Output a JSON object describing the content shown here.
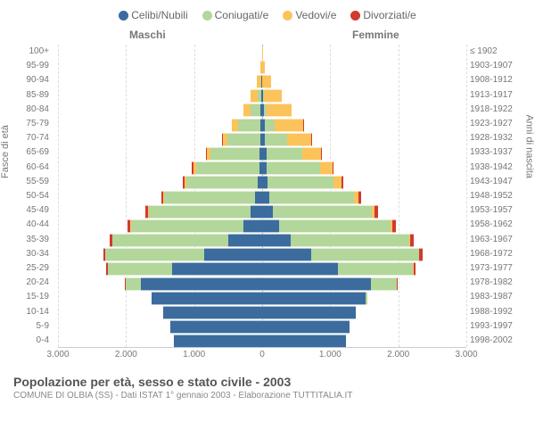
{
  "legend": [
    {
      "label": "Celibi/Nubili",
      "color": "#3b6c9d"
    },
    {
      "label": "Coniugati/e",
      "color": "#b3d69b"
    },
    {
      "label": "Vedovi/e",
      "color": "#fcc35a"
    },
    {
      "label": "Divorziati/e",
      "color": "#d23a2e"
    }
  ],
  "headers": {
    "left": "Maschi",
    "right": "Femmine"
  },
  "ylabel_left": "Fasce di età",
  "ylabel_right": "Anni di nascita",
  "xmax": 3000,
  "xticks_left": [
    "3.000",
    "2.000",
    "1.000",
    "0"
  ],
  "xticks_right": [
    "0",
    "1.000",
    "2.000",
    "3.000"
  ],
  "age_groups": [
    "100+",
    "95-99",
    "90-94",
    "85-89",
    "80-84",
    "75-79",
    "70-74",
    "65-69",
    "60-64",
    "55-59",
    "50-54",
    "45-49",
    "40-44",
    "35-39",
    "30-34",
    "25-29",
    "20-24",
    "15-19",
    "10-14",
    "5-9",
    "0-4"
  ],
  "birth_years": [
    "≤ 1902",
    "1903-1907",
    "1908-1912",
    "1913-1917",
    "1918-1922",
    "1923-1927",
    "1928-1932",
    "1933-1937",
    "1938-1942",
    "1943-1947",
    "1948-1952",
    "1953-1957",
    "1958-1962",
    "1963-1967",
    "1968-1972",
    "1973-1977",
    "1978-1982",
    "1983-1987",
    "1988-1992",
    "1993-1997",
    "1998-2002"
  ],
  "rows": [
    {
      "m": [
        0,
        0,
        5,
        0
      ],
      "f": [
        0,
        0,
        7,
        0
      ]
    },
    {
      "m": [
        0,
        0,
        22,
        0
      ],
      "f": [
        0,
        0,
        40,
        0
      ]
    },
    {
      "m": [
        10,
        10,
        60,
        0
      ],
      "f": [
        5,
        0,
        130,
        0
      ]
    },
    {
      "m": [
        15,
        50,
        100,
        0
      ],
      "f": [
        15,
        10,
        260,
        0
      ]
    },
    {
      "m": [
        20,
        150,
        110,
        0
      ],
      "f": [
        30,
        35,
        370,
        0
      ]
    },
    {
      "m": [
        25,
        330,
        90,
        0
      ],
      "f": [
        40,
        140,
        420,
        5
      ]
    },
    {
      "m": [
        25,
        480,
        75,
        5
      ],
      "f": [
        45,
        320,
        350,
        5
      ]
    },
    {
      "m": [
        35,
        720,
        55,
        10
      ],
      "f": [
        60,
        530,
        280,
        10
      ]
    },
    {
      "m": [
        45,
        930,
        40,
        15
      ],
      "f": [
        70,
        780,
        180,
        15
      ]
    },
    {
      "m": [
        70,
        1050,
        25,
        20
      ],
      "f": [
        80,
        970,
        120,
        25
      ]
    },
    {
      "m": [
        110,
        1330,
        15,
        30
      ],
      "f": [
        110,
        1240,
        70,
        40
      ]
    },
    {
      "m": [
        170,
        1500,
        10,
        40
      ],
      "f": [
        160,
        1450,
        40,
        50
      ]
    },
    {
      "m": [
        280,
        1650,
        5,
        45
      ],
      "f": [
        250,
        1640,
        25,
        55
      ]
    },
    {
      "m": [
        500,
        1700,
        0,
        45
      ],
      "f": [
        420,
        1740,
        15,
        55
      ]
    },
    {
      "m": [
        850,
        1450,
        0,
        35
      ],
      "f": [
        720,
        1580,
        10,
        45
      ]
    },
    {
      "m": [
        1320,
        950,
        0,
        20
      ],
      "f": [
        1120,
        1100,
        5,
        30
      ]
    },
    {
      "m": [
        1780,
        230,
        0,
        5
      ],
      "f": [
        1600,
        380,
        0,
        10
      ]
    },
    {
      "m": [
        1620,
        10,
        0,
        0
      ],
      "f": [
        1520,
        20,
        0,
        0
      ]
    },
    {
      "m": [
        1450,
        0,
        0,
        0
      ],
      "f": [
        1370,
        0,
        0,
        0
      ]
    },
    {
      "m": [
        1350,
        0,
        0,
        0
      ],
      "f": [
        1280,
        0,
        0,
        0
      ]
    },
    {
      "m": [
        1300,
        0,
        0,
        0
      ],
      "f": [
        1230,
        0,
        0,
        0
      ]
    }
  ],
  "footer": {
    "title": "Popolazione per età, sesso e stato civile - 2003",
    "sub": "COMUNE DI OLBIA (SS) - Dati ISTAT 1° gennaio 2003 - Elaborazione TUTTITALIA.IT"
  },
  "colors": {
    "bg": "#ffffff",
    "grid": "#dddddd",
    "axis": "#cccccc",
    "text": "#777777"
  }
}
